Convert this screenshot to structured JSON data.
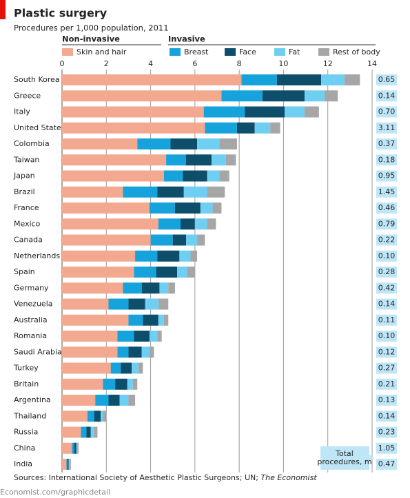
{
  "chart_data": {
    "type": "bar",
    "orientation": "horizontal",
    "stacked": true,
    "title": "Plastic surgery",
    "subtitle": "Procedures per 1,000 population, 2011",
    "legend_groups": [
      "Non-invasive",
      "Invasive"
    ],
    "categories": [
      "South Korea",
      "Greece",
      "Italy",
      "United States",
      "Colombia",
      "Taiwan",
      "Japan",
      "Brazil",
      "France",
      "Mexico",
      "Canada",
      "Netherlands",
      "Spain",
      "Germany",
      "Venezuela",
      "Australia",
      "Romania",
      "Saudi Arabia",
      "Turkey",
      "Britain",
      "Argentina",
      "Thailand",
      "Russia",
      "China",
      "India"
    ],
    "series": [
      {
        "name": "Skin and hair",
        "color": "#f2a98f",
        "values": [
          8.1,
          7.2,
          6.4,
          6.45,
          3.4,
          4.7,
          4.6,
          2.75,
          3.95,
          4.35,
          4.0,
          3.3,
          3.25,
          2.75,
          2.1,
          3.0,
          2.5,
          2.5,
          2.2,
          1.85,
          1.5,
          1.15,
          0.85,
          0.45,
          0.2
        ]
      },
      {
        "name": "Breast",
        "color": "#16a3dc",
        "values": [
          1.6,
          1.85,
          1.85,
          1.45,
          1.5,
          0.9,
          0.85,
          1.55,
          1.15,
          1.0,
          1.0,
          1.0,
          1.0,
          0.85,
          0.9,
          0.65,
          0.75,
          0.5,
          0.45,
          0.55,
          0.6,
          0.3,
          0.25,
          0.1,
          0.05
        ]
      },
      {
        "name": "Face",
        "color": "#0d4f6b",
        "values": [
          2.0,
          1.9,
          1.8,
          0.8,
          1.2,
          1.15,
          1.1,
          1.2,
          1.15,
          0.65,
          0.6,
          1.0,
          0.95,
          0.8,
          0.75,
          0.7,
          0.7,
          0.6,
          0.5,
          0.55,
          0.5,
          0.3,
          0.2,
          0.1,
          0.05
        ]
      },
      {
        "name": "Fat",
        "color": "#6fcff2",
        "values": [
          1.05,
          0.9,
          0.9,
          0.7,
          1.0,
          0.65,
          0.55,
          1.05,
          0.55,
          0.55,
          0.5,
          0.5,
          0.45,
          0.4,
          0.6,
          0.25,
          0.35,
          0.35,
          0.3,
          0.25,
          0.4,
          0.1,
          0.15,
          0.05,
          0.05
        ]
      },
      {
        "name": "Rest of body",
        "color": "#a6a6a6",
        "values": [
          0.7,
          0.6,
          0.65,
          0.45,
          0.8,
          0.45,
          0.45,
          0.8,
          0.4,
          0.4,
          0.35,
          0.3,
          0.35,
          0.3,
          0.45,
          0.2,
          0.2,
          0.2,
          0.2,
          0.2,
          0.3,
          0.15,
          0.15,
          0.05,
          0.05
        ]
      }
    ],
    "xlim": [
      0,
      14
    ],
    "xticks": [
      0,
      2,
      4,
      6,
      8,
      10,
      12,
      14
    ],
    "grid": true,
    "totals": {
      "label": "Total procedures, m",
      "color": "#bfe6f7",
      "values": [
        0.65,
        0.14,
        0.7,
        3.11,
        0.37,
        0.18,
        0.95,
        1.45,
        0.46,
        0.79,
        0.22,
        0.1,
        0.28,
        0.42,
        0.14,
        0.11,
        0.1,
        0.12,
        0.27,
        0.21,
        0.13,
        0.14,
        0.23,
        1.05,
        0.47
      ],
      "value_labels": [
        "0.65",
        "0.14",
        "0.70",
        "3.11",
        "0.37",
        "0.18",
        "0.95",
        "1.45",
        "0.46",
        "0.79",
        "0.22",
        "0.10",
        "0.28",
        "0.42",
        "0.14",
        "0.11",
        "0.10",
        "0.12",
        "0.27",
        "0.21",
        "0.13",
        "0.14",
        "0.23",
        "1.05",
        "0.47"
      ]
    },
    "source": "Sources: International Society of Aesthetic Plastic Surgeons; UN; ",
    "source_italic": "The Economist",
    "footer": "Economist.com/graphicdetail"
  }
}
